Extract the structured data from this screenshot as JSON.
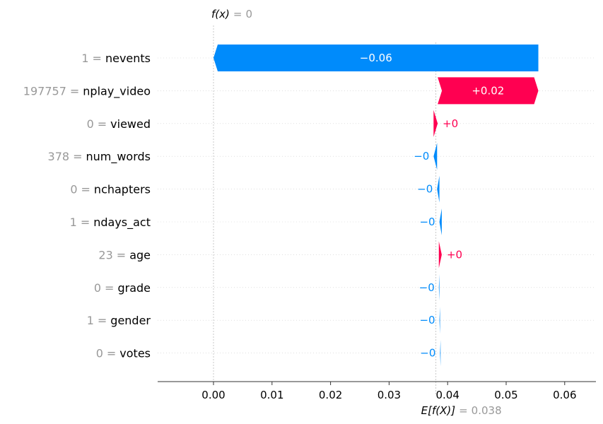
{
  "chart_data": {
    "type": "waterfall",
    "top_label": {
      "fx": "f(x)",
      "eq": "=",
      "value": "0"
    },
    "bottom_label": {
      "efx": "E[f(X)]",
      "eq": "=",
      "value": "0.038"
    },
    "base_value": 0.038,
    "xlim": [
      -0.009,
      0.065
    ],
    "xticks": [
      {
        "value": 0.0,
        "label": "0.00"
      },
      {
        "value": 0.01,
        "label": "0.01"
      },
      {
        "value": 0.02,
        "label": "0.02"
      },
      {
        "value": 0.03,
        "label": "0.03"
      },
      {
        "value": 0.04,
        "label": "0.04"
      },
      {
        "value": 0.05,
        "label": "0.05"
      },
      {
        "value": 0.06,
        "label": "0.06"
      }
    ],
    "features": [
      {
        "value": "1",
        "eq": "=",
        "name": "nevents",
        "start": 0.0555,
        "end": 0.0,
        "label": "−0.06",
        "sign": "neg"
      },
      {
        "value": "197757",
        "eq": "=",
        "name": "nplay_video",
        "start": 0.0383,
        "end": 0.0555,
        "label": "+0.02",
        "sign": "pos"
      },
      {
        "value": "0",
        "eq": "=",
        "name": "viewed",
        "start": 0.0376,
        "end": 0.0383,
        "label": "+0",
        "sign": "pos"
      },
      {
        "value": "378",
        "eq": "=",
        "name": "num_words",
        "start": 0.0382,
        "end": 0.0376,
        "label": "−0",
        "sign": "neg"
      },
      {
        "value": "0",
        "eq": "=",
        "name": "nchapters",
        "start": 0.0386,
        "end": 0.0382,
        "label": "−0",
        "sign": "neg"
      },
      {
        "value": "1",
        "eq": "=",
        "name": "ndays_act",
        "start": 0.039,
        "end": 0.0386,
        "label": "−0",
        "sign": "neg"
      },
      {
        "value": "23",
        "eq": "=",
        "name": "age",
        "start": 0.0385,
        "end": 0.039,
        "label": "+0",
        "sign": "pos"
      },
      {
        "value": "0",
        "eq": "=",
        "name": "grade",
        "start": 0.0386,
        "end": 0.0385,
        "label": "−0",
        "sign": "neg"
      },
      {
        "value": "1",
        "eq": "=",
        "name": "gender",
        "start": 0.0387,
        "end": 0.0386,
        "label": "−0",
        "sign": "neg"
      },
      {
        "value": "0",
        "eq": "=",
        "name": "votes",
        "start": 0.0388,
        "end": 0.0387,
        "label": "−0",
        "sign": "neg"
      }
    ],
    "colors": {
      "positive": "#ff0051",
      "negative": "#008bfb",
      "value_text": "#999999",
      "axis": "#333333",
      "grid": "#cccccc"
    }
  }
}
